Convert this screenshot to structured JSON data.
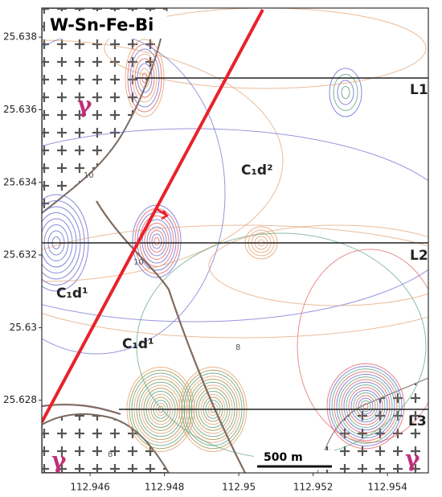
{
  "map": {
    "title": "W-Sn-Fe-Bi",
    "xlim": [
      112.9447,
      112.9551
    ],
    "ylim": [
      25.626,
      25.6388
    ],
    "xticks": [
      112.946,
      112.948,
      112.95,
      112.952,
      112.954
    ],
    "yticks": [
      25.628,
      25.63,
      25.632,
      25.634,
      25.636,
      25.638
    ],
    "profiles": [
      "L1",
      "L2",
      "L3"
    ],
    "units": [
      "C₁d²",
      "C₁d¹",
      "C₁d¹"
    ],
    "granite_labels": [
      "γ",
      "γ",
      "γ"
    ],
    "contour_labels": [
      "10",
      "10",
      "8",
      "8"
    ],
    "scale_bar": "500 m"
  }
}
